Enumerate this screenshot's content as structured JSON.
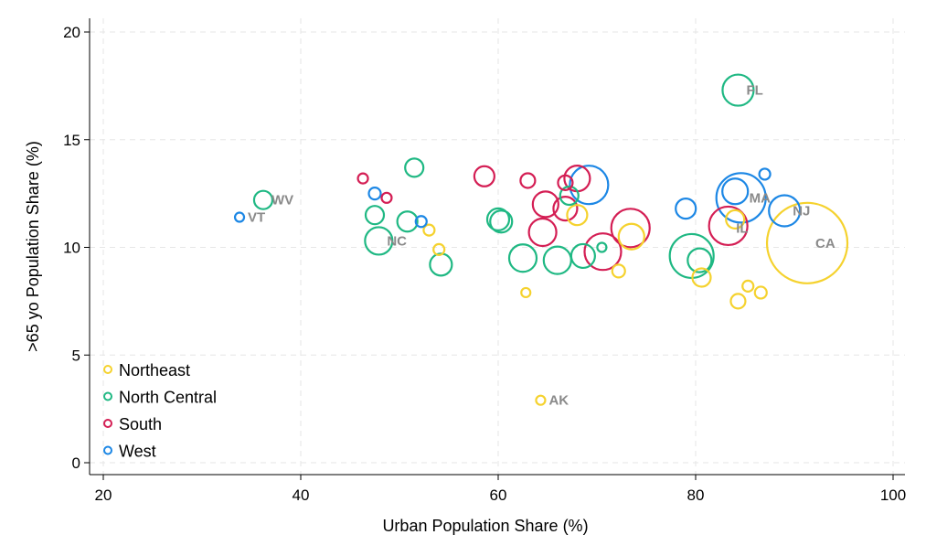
{
  "chart_data": {
    "type": "scatter",
    "bubble": true,
    "xlabel": "Urban Population Share (%)",
    "ylabel": ">65 yo Population Share (%)",
    "xlim": [
      20,
      100
    ],
    "ylim": [
      0,
      20
    ],
    "xticks": [
      20,
      40,
      60,
      80,
      100
    ],
    "yticks": [
      0,
      5,
      10,
      15,
      20
    ],
    "grid": true,
    "legend_position": "bottom-left",
    "series": [
      {
        "name": "Northeast",
        "color": "#f5d22e",
        "points": [
          {
            "x": 91.3,
            "y": 10.2,
            "size": 44,
            "label": "CA"
          },
          {
            "x": 73.5,
            "y": 10.5,
            "size": 14
          },
          {
            "x": 68.0,
            "y": 11.5,
            "size": 11
          },
          {
            "x": 84.0,
            "y": 11.3,
            "size": 10
          },
          {
            "x": 80.6,
            "y": 8.6,
            "size": 10
          },
          {
            "x": 72.2,
            "y": 8.9,
            "size": 7
          },
          {
            "x": 84.3,
            "y": 7.5,
            "size": 8
          },
          {
            "x": 86.6,
            "y": 7.9,
            "size": 6.5
          },
          {
            "x": 85.3,
            "y": 8.2,
            "size": 6
          },
          {
            "x": 54.0,
            "y": 9.9,
            "size": 6
          },
          {
            "x": 53.0,
            "y": 10.8,
            "size": 6
          },
          {
            "x": 62.8,
            "y": 7.9,
            "size": 5
          },
          {
            "x": 64.3,
            "y": 2.9,
            "size": 5,
            "label": "AK"
          }
        ]
      },
      {
        "name": "North Central",
        "color": "#1fb883",
        "points": [
          {
            "x": 84.3,
            "y": 17.3,
            "size": 17,
            "label": "FL"
          },
          {
            "x": 79.6,
            "y": 9.6,
            "size": 24
          },
          {
            "x": 80.4,
            "y": 9.4,
            "size": 13
          },
          {
            "x": 68.6,
            "y": 9.6,
            "size": 13
          },
          {
            "x": 66.0,
            "y": 9.4,
            "size": 15
          },
          {
            "x": 62.5,
            "y": 9.5,
            "size": 15
          },
          {
            "x": 60.0,
            "y": 11.3,
            "size": 12
          },
          {
            "x": 60.3,
            "y": 11.2,
            "size": 12
          },
          {
            "x": 54.2,
            "y": 9.2,
            "size": 12
          },
          {
            "x": 47.9,
            "y": 10.3,
            "size": 15,
            "label": "NC"
          },
          {
            "x": 50.8,
            "y": 11.2,
            "size": 11
          },
          {
            "x": 47.5,
            "y": 11.5,
            "size": 10
          },
          {
            "x": 51.5,
            "y": 13.7,
            "size": 10
          },
          {
            "x": 36.2,
            "y": 12.2,
            "size": 10,
            "label": "WV"
          },
          {
            "x": 67.2,
            "y": 12.4,
            "size": 10
          },
          {
            "x": 70.5,
            "y": 10.0,
            "size": 5
          }
        ]
      },
      {
        "name": "South",
        "color": "#d41e54",
        "points": [
          {
            "x": 83.3,
            "y": 11.0,
            "size": 21
          },
          {
            "x": 73.4,
            "y": 10.9,
            "size": 21
          },
          {
            "x": 70.6,
            "y": 9.8,
            "size": 20
          },
          {
            "x": 68.0,
            "y": 13.2,
            "size": 14
          },
          {
            "x": 66.8,
            "y": 11.8,
            "size": 13
          },
          {
            "x": 64.8,
            "y": 12.0,
            "size": 14
          },
          {
            "x": 64.5,
            "y": 10.7,
            "size": 15
          },
          {
            "x": 58.6,
            "y": 13.3,
            "size": 11
          },
          {
            "x": 63.0,
            "y": 13.1,
            "size": 8
          },
          {
            "x": 66.8,
            "y": 13.0,
            "size": 8
          },
          {
            "x": 46.3,
            "y": 13.2,
            "size": 5.5
          },
          {
            "x": 48.7,
            "y": 12.3,
            "size": 5.5
          }
        ]
      },
      {
        "name": "West",
        "color": "#1c87e5",
        "points": [
          {
            "x": 84.6,
            "y": 12.3,
            "size": 27,
            "label": "MA"
          },
          {
            "x": 69.2,
            "y": 12.9,
            "size": 21
          },
          {
            "x": 89.0,
            "y": 11.7,
            "size": 17,
            "label": "NJ"
          },
          {
            "x": 84.0,
            "y": 12.6,
            "size": 14
          },
          {
            "x": 79.0,
            "y": 11.8,
            "size": 11
          },
          {
            "x": 87.0,
            "y": 13.4,
            "size": 6
          },
          {
            "x": 47.5,
            "y": 12.5,
            "size": 6.5
          },
          {
            "x": 52.2,
            "y": 11.2,
            "size": 6
          },
          {
            "x": 33.8,
            "y": 11.4,
            "size": 5,
            "label": "VT"
          }
        ]
      }
    ],
    "extra_labels": [
      {
        "text": "IL",
        "x": 84.1,
        "y": 10.9
      }
    ]
  }
}
